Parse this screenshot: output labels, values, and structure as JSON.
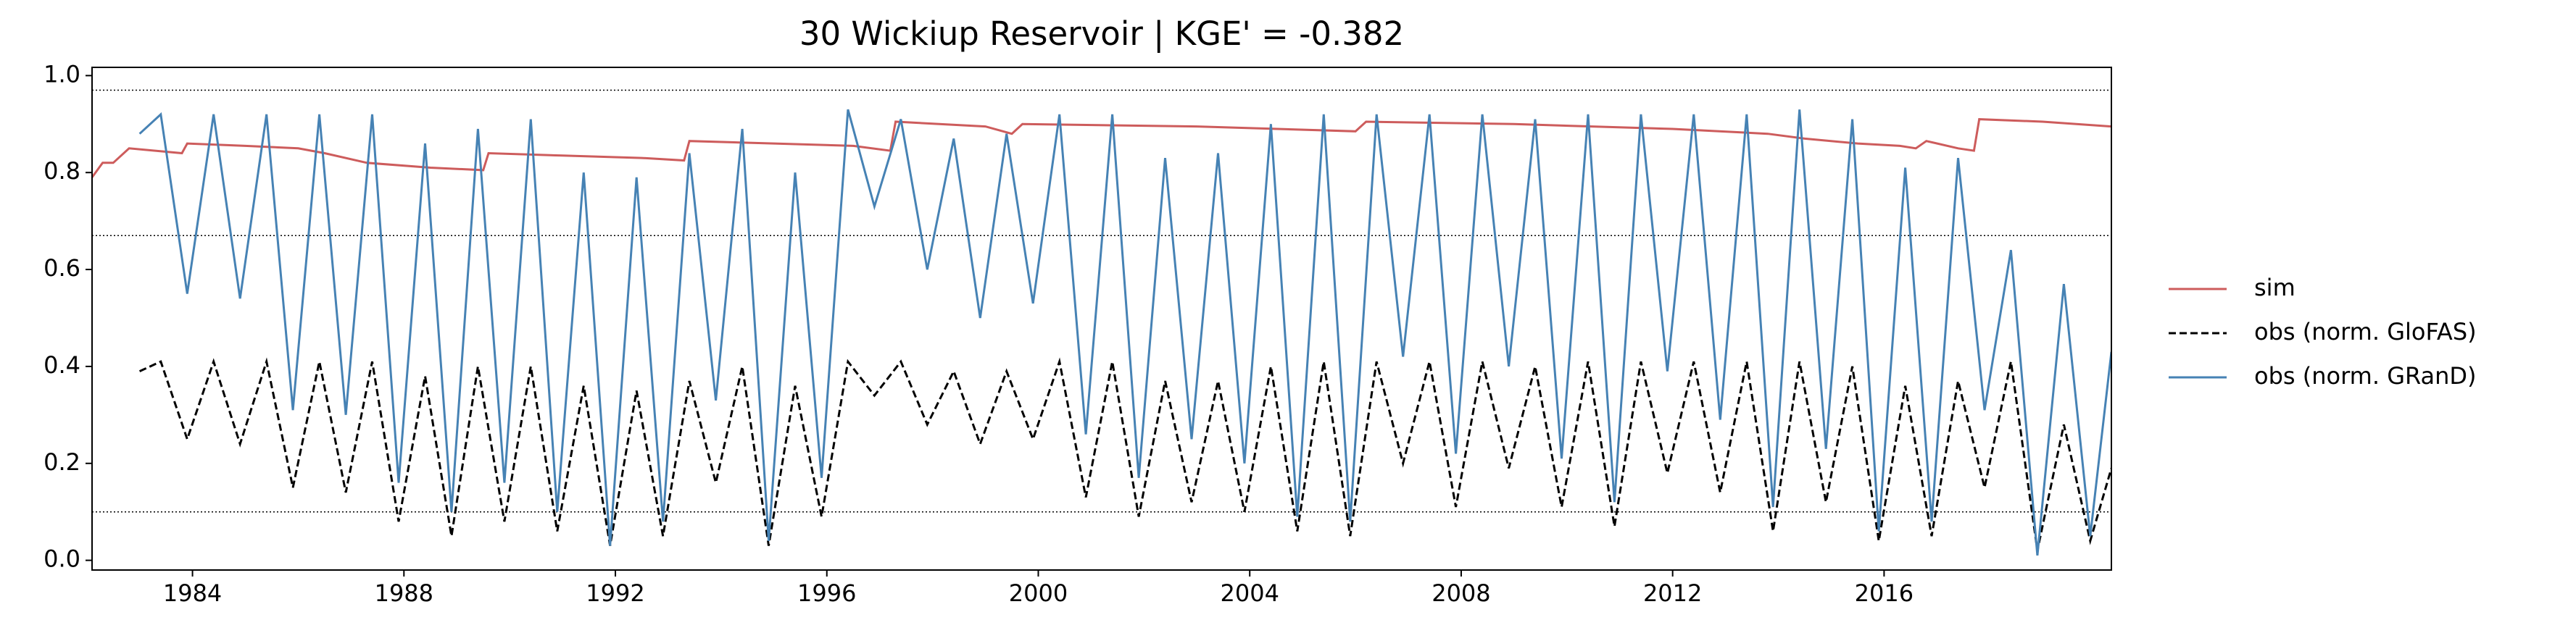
{
  "chart_data": {
    "type": "line",
    "title": "30  Wickiup Reservoir | KGE' = -0.382",
    "xlim": [
      1982.1,
      2020.3
    ],
    "ylim": [
      -0.02,
      1.017
    ],
    "xticks": [
      1984,
      1988,
      1992,
      1996,
      2000,
      2004,
      2008,
      2012,
      2016
    ],
    "yticks": [
      {
        "value": 0,
        "label": "0.0"
      },
      0.2,
      0.4,
      0.6,
      0.8,
      {
        "value": 1,
        "label": "1.0"
      }
    ],
    "hlines": [
      0.97,
      0.67,
      0.1
    ],
    "legend": "outside-right",
    "series": [
      {
        "name": "sim",
        "color": "#cd5c5c",
        "linestyle": "solid",
        "x": [
          1982.1,
          1982.3,
          1982.5,
          1982.8,
          1983.8,
          1983.9,
          1985.0,
          1986.0,
          1986.5,
          1987.3,
          1988.5,
          1989.5,
          1989.6,
          1991.0,
          1992.5,
          1993.3,
          1993.4,
          1995.0,
          1996.5,
          1997.2,
          1997.3,
          1999.0,
          1999.5,
          1999.7,
          2003.0,
          2006.0,
          2006.2,
          2009.0,
          2012.0,
          2013.8,
          2014.5,
          2015.5,
          2016.3,
          2016.6,
          2016.8,
          2017.4,
          2017.7,
          2017.8,
          2019.0,
          2020.3
        ],
        "values": [
          0.79,
          0.82,
          0.82,
          0.85,
          0.84,
          0.86,
          0.855,
          0.85,
          0.84,
          0.82,
          0.81,
          0.805,
          0.84,
          0.835,
          0.83,
          0.825,
          0.865,
          0.86,
          0.855,
          0.845,
          0.905,
          0.895,
          0.88,
          0.9,
          0.895,
          0.885,
          0.905,
          0.9,
          0.89,
          0.88,
          0.87,
          0.86,
          0.855,
          0.85,
          0.865,
          0.85,
          0.845,
          0.91,
          0.905,
          0.895
        ]
      },
      {
        "name": "obs (norm. GloFAS)",
        "color": "#000000",
        "linestyle": "dashed",
        "x": [
          1983.0,
          1983.4,
          1983.9,
          1984.4,
          1984.9,
          1985.4,
          1985.9,
          1986.4,
          1986.9,
          1987.4,
          1987.9,
          1988.4,
          1988.9,
          1989.4,
          1989.9,
          1990.4,
          1990.9,
          1991.4,
          1991.9,
          1992.4,
          1992.9,
          1993.4,
          1993.9,
          1994.4,
          1994.9,
          1995.4,
          1995.9,
          1996.4,
          1996.9,
          1997.4,
          1997.9,
          1998.4,
          1998.9,
          1999.4,
          1999.9,
          2000.4,
          2000.9,
          2001.4,
          2001.9,
          2002.4,
          2002.9,
          2003.4,
          2003.9,
          2004.4,
          2004.9,
          2005.4,
          2005.9,
          2006.4,
          2006.9,
          2007.4,
          2007.9,
          2008.4,
          2008.9,
          2009.4,
          2009.9,
          2010.4,
          2010.9,
          2011.4,
          2011.9,
          2012.4,
          2012.9,
          2013.4,
          2013.9,
          2014.4,
          2014.9,
          2015.4,
          2015.9,
          2016.4,
          2016.9,
          2017.4,
          2017.9,
          2018.4,
          2018.9,
          2019.4,
          2019.9,
          2020.3
        ],
        "values": [
          0.39,
          0.41,
          0.25,
          0.41,
          0.24,
          0.41,
          0.15,
          0.41,
          0.14,
          0.41,
          0.08,
          0.38,
          0.05,
          0.4,
          0.08,
          0.4,
          0.06,
          0.36,
          0.03,
          0.35,
          0.05,
          0.37,
          0.16,
          0.4,
          0.03,
          0.36,
          0.09,
          0.41,
          0.34,
          0.41,
          0.28,
          0.39,
          0.24,
          0.39,
          0.25,
          0.41,
          0.13,
          0.41,
          0.09,
          0.37,
          0.12,
          0.37,
          0.1,
          0.4,
          0.06,
          0.41,
          0.05,
          0.41,
          0.2,
          0.41,
          0.11,
          0.41,
          0.19,
          0.4,
          0.11,
          0.41,
          0.07,
          0.41,
          0.18,
          0.41,
          0.14,
          0.41,
          0.06,
          0.41,
          0.12,
          0.4,
          0.04,
          0.36,
          0.05,
          0.37,
          0.15,
          0.41,
          0.02,
          0.28,
          0.04,
          0.19
        ]
      },
      {
        "name": "obs (norm. GRanD)",
        "color": "#4682b4",
        "linestyle": "solid",
        "x": [
          1983.0,
          1983.4,
          1983.9,
          1984.4,
          1984.9,
          1985.4,
          1985.9,
          1986.4,
          1986.9,
          1987.4,
          1987.9,
          1988.4,
          1988.9,
          1989.4,
          1989.9,
          1990.4,
          1990.9,
          1991.4,
          1991.9,
          1992.4,
          1992.9,
          1993.4,
          1993.9,
          1994.4,
          1994.9,
          1995.4,
          1995.9,
          1996.4,
          1996.9,
          1997.4,
          1997.9,
          1998.4,
          1998.9,
          1999.4,
          1999.9,
          2000.4,
          2000.9,
          2001.4,
          2001.9,
          2002.4,
          2002.9,
          2003.4,
          2003.9,
          2004.4,
          2004.9,
          2005.4,
          2005.9,
          2006.4,
          2006.9,
          2007.4,
          2007.9,
          2008.4,
          2008.9,
          2009.4,
          2009.9,
          2010.4,
          2010.9,
          2011.4,
          2011.9,
          2012.4,
          2012.9,
          2013.4,
          2013.9,
          2014.4,
          2014.9,
          2015.4,
          2015.9,
          2016.4,
          2016.9,
          2017.4,
          2017.9,
          2018.4,
          2018.9,
          2019.4,
          2019.9,
          2020.3
        ],
        "values": [
          0.88,
          0.92,
          0.55,
          0.92,
          0.54,
          0.92,
          0.31,
          0.92,
          0.3,
          0.92,
          0.16,
          0.86,
          0.1,
          0.89,
          0.16,
          0.91,
          0.1,
          0.8,
          0.03,
          0.79,
          0.08,
          0.84,
          0.33,
          0.89,
          0.04,
          0.8,
          0.17,
          0.93,
          0.73,
          0.91,
          0.6,
          0.87,
          0.5,
          0.88,
          0.53,
          0.92,
          0.26,
          0.92,
          0.17,
          0.83,
          0.25,
          0.84,
          0.2,
          0.9,
          0.09,
          0.92,
          0.08,
          0.92,
          0.42,
          0.92,
          0.22,
          0.92,
          0.4,
          0.91,
          0.21,
          0.92,
          0.12,
          0.92,
          0.39,
          0.92,
          0.29,
          0.92,
          0.11,
          0.93,
          0.23,
          0.91,
          0.06,
          0.81,
          0.08,
          0.83,
          0.31,
          0.64,
          0.01,
          0.57,
          0.05,
          0.43
        ]
      }
    ]
  }
}
